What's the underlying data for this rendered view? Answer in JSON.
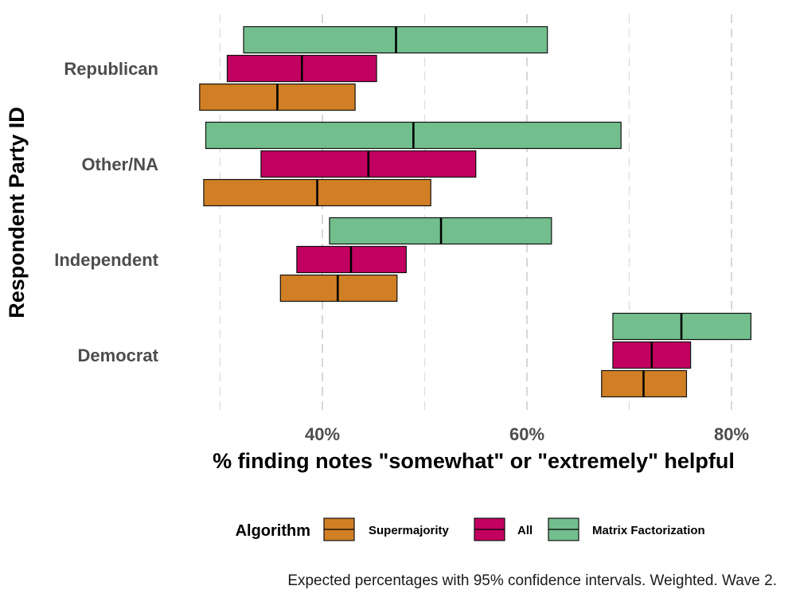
{
  "chart_data": {
    "type": "crossbar",
    "xlabel": "% finding notes \"somewhat\" or \"extremely\" helpful",
    "ylabel": "Respondent Party ID",
    "xlim": [
      25,
      85
    ],
    "x_ticks": [
      40,
      60,
      80
    ],
    "x_tick_labels": [
      "40%",
      "60%",
      "80%"
    ],
    "x_minor_gridlines": [
      30,
      50,
      70
    ],
    "grid": true,
    "categories": [
      "Republican",
      "Other/NA",
      "Independent",
      "Democrat"
    ],
    "series": [
      {
        "name": "Supermajority",
        "color": "#D17F24",
        "estimates": [
          {
            "category": "Republican",
            "low": 28.0,
            "mid": 35.6,
            "high": 43.2
          },
          {
            "category": "Other/NA",
            "low": 28.4,
            "mid": 39.5,
            "high": 50.6
          },
          {
            "category": "Independent",
            "low": 35.9,
            "mid": 41.5,
            "high": 47.3
          },
          {
            "category": "Democrat",
            "low": 67.3,
            "mid": 71.4,
            "high": 75.6
          }
        ]
      },
      {
        "name": "All",
        "color": "#C2005F",
        "estimates": [
          {
            "category": "Republican",
            "low": 30.7,
            "mid": 38.0,
            "high": 45.3
          },
          {
            "category": "Other/NA",
            "low": 34.0,
            "mid": 44.5,
            "high": 55.0
          },
          {
            "category": "Independent",
            "low": 37.5,
            "mid": 42.8,
            "high": 48.2
          },
          {
            "category": "Democrat",
            "low": 68.4,
            "mid": 72.2,
            "high": 76.0
          }
        ]
      },
      {
        "name": "Matrix Factorization",
        "color": "#72BF8D",
        "estimates": [
          {
            "category": "Republican",
            "low": 32.3,
            "mid": 47.2,
            "high": 62.0
          },
          {
            "category": "Other/NA",
            "low": 28.6,
            "mid": 48.9,
            "high": 69.2
          },
          {
            "category": "Independent",
            "low": 40.7,
            "mid": 51.6,
            "high": 62.4
          },
          {
            "category": "Democrat",
            "low": 68.4,
            "mid": 75.1,
            "high": 81.9
          }
        ]
      }
    ],
    "legend": {
      "title": "Algorithm",
      "position": "bottom",
      "items": [
        "Supermajority",
        "All",
        "Matrix Factorization"
      ]
    },
    "caption": "Expected percentages with 95% confidence intervals. Weighted. Wave 2."
  }
}
